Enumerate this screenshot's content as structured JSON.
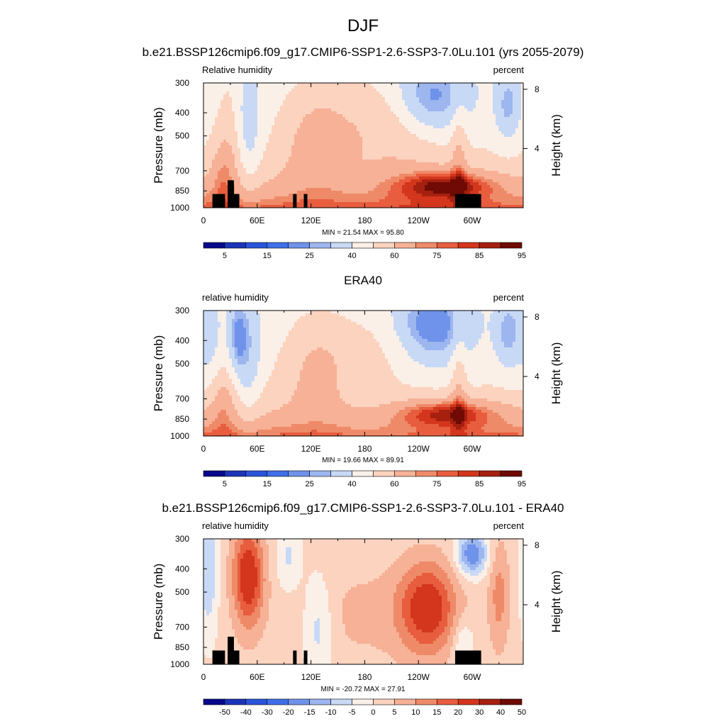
{
  "figure": {
    "title": "DJF"
  },
  "colors": {
    "abs_palette": [
      "#08088c",
      "#1c34b8",
      "#2a55db",
      "#3f6fe8",
      "#6f93ea",
      "#9db6ef",
      "#c8d9f6",
      "#fbf0e8",
      "#fbd3bf",
      "#f6b196",
      "#ef8a68",
      "#e75d3e",
      "#d3361c",
      "#a5200f",
      "#6f0a04"
    ],
    "diff_palette": [
      "#08088c",
      "#1c34b8",
      "#2a55db",
      "#3f6fe8",
      "#6f93ea",
      "#9db6ef",
      "#c8d9f6",
      "#fbf0e8",
      "#fbd3bf",
      "#f6b196",
      "#ef8a68",
      "#e75d3e",
      "#d3361c",
      "#a5200f",
      "#6f0a04"
    ],
    "land_mask": "#000000"
  },
  "chart_data": [
    {
      "type": "heatmap",
      "title": "b.e21.BSSP126cmip6.f09_g17.CMIP6-SSP1-2.6-SSP3-7.0Lu.101 (yrs 2055-2079)",
      "left_label": "Relative humidity",
      "right_label": "percent",
      "ylabel": "Pressure (mb)",
      "y2label": "Height (km)",
      "xticks": [
        "0",
        "60E",
        "120E",
        "180",
        "120W",
        "60W"
      ],
      "xtick_lon": [
        0,
        60,
        120,
        180,
        240,
        300
      ],
      "xlim": [
        0,
        357
      ],
      "yticks": [
        "300",
        "400",
        "500",
        "700",
        "850",
        "1000"
      ],
      "ytick_p": [
        300,
        400,
        500,
        700,
        850,
        1000
      ],
      "ylim": [
        1000,
        300
      ],
      "y2ticks": [
        "8",
        "4"
      ],
      "y2tick_km": [
        8,
        4
      ],
      "minmax": "MIN =  21.54  MAX =  95.80",
      "min": 21.54,
      "max": 95.8,
      "levels": [
        5,
        10,
        15,
        20,
        25,
        30,
        40,
        50,
        60,
        70,
        75,
        80,
        85,
        90,
        95
      ],
      "colorbar_labels": [
        "5",
        "15",
        "25",
        "40",
        "60",
        "75",
        "85",
        "95"
      ],
      "colorbar_label_index": [
        0,
        2,
        4,
        6,
        8,
        10,
        12,
        14
      ],
      "land_mask": true
    },
    {
      "type": "heatmap",
      "title": "ERA40",
      "left_label": "relative humidity",
      "right_label": "percent",
      "ylabel": "Pressure (mb)",
      "y2label": "Height (km)",
      "xticks": [
        "0",
        "60E",
        "120E",
        "180",
        "120W",
        "60W"
      ],
      "xtick_lon": [
        0,
        60,
        120,
        180,
        240,
        300
      ],
      "xlim": [
        0,
        357
      ],
      "yticks": [
        "300",
        "400",
        "500",
        "700",
        "850",
        "1000"
      ],
      "ytick_p": [
        300,
        400,
        500,
        700,
        850,
        1000
      ],
      "ylim": [
        1000,
        300
      ],
      "y2ticks": [
        "8",
        "4"
      ],
      "y2tick_km": [
        8,
        4
      ],
      "minmax": "MIN =  19.66  MAX =  89.91",
      "min": 19.66,
      "max": 89.91,
      "levels": [
        5,
        10,
        15,
        20,
        25,
        30,
        40,
        50,
        60,
        70,
        75,
        80,
        85,
        90,
        95
      ],
      "colorbar_labels": [
        "5",
        "15",
        "25",
        "40",
        "60",
        "75",
        "85",
        "95"
      ],
      "colorbar_label_index": [
        0,
        2,
        4,
        6,
        8,
        10,
        12,
        14
      ],
      "land_mask": false
    },
    {
      "type": "heatmap",
      "title": "b.e21.BSSP126cmip6.f09_g17.CMIP6-SSP1-2.6-SSP3-7.0Lu.101 - ERA40",
      "left_label": "relative humidity",
      "right_label": "percent",
      "ylabel": "Pressure (mb)",
      "y2label": "Height (km)",
      "xticks": [
        "0",
        "60E",
        "120E",
        "180",
        "120W",
        "60W"
      ],
      "xtick_lon": [
        0,
        60,
        120,
        180,
        240,
        300
      ],
      "xlim": [
        0,
        357
      ],
      "yticks": [
        "300",
        "400",
        "500",
        "700",
        "850",
        "1000"
      ],
      "ytick_p": [
        300,
        400,
        500,
        700,
        850,
        1000
      ],
      "ylim": [
        1000,
        300
      ],
      "y2ticks": [
        "8",
        "4"
      ],
      "y2tick_km": [
        8,
        4
      ],
      "minmax": "MIN = -20.72  MAX =  27.91",
      "min": -20.72,
      "max": 27.91,
      "levels": [
        -50,
        -40,
        -30,
        -20,
        -15,
        -10,
        -5,
        0,
        5,
        10,
        15,
        20,
        30,
        40,
        50
      ],
      "colorbar_labels": [
        "-50",
        "-40",
        "-30",
        "-20",
        "-15",
        "-10",
        "-5",
        "0",
        "5",
        "10",
        "15",
        "20",
        "30",
        "40",
        "50"
      ],
      "colorbar_label_index": [
        0,
        1,
        2,
        3,
        4,
        5,
        6,
        7,
        8,
        9,
        10,
        11,
        12,
        13,
        14
      ],
      "land_mask": true
    }
  ]
}
